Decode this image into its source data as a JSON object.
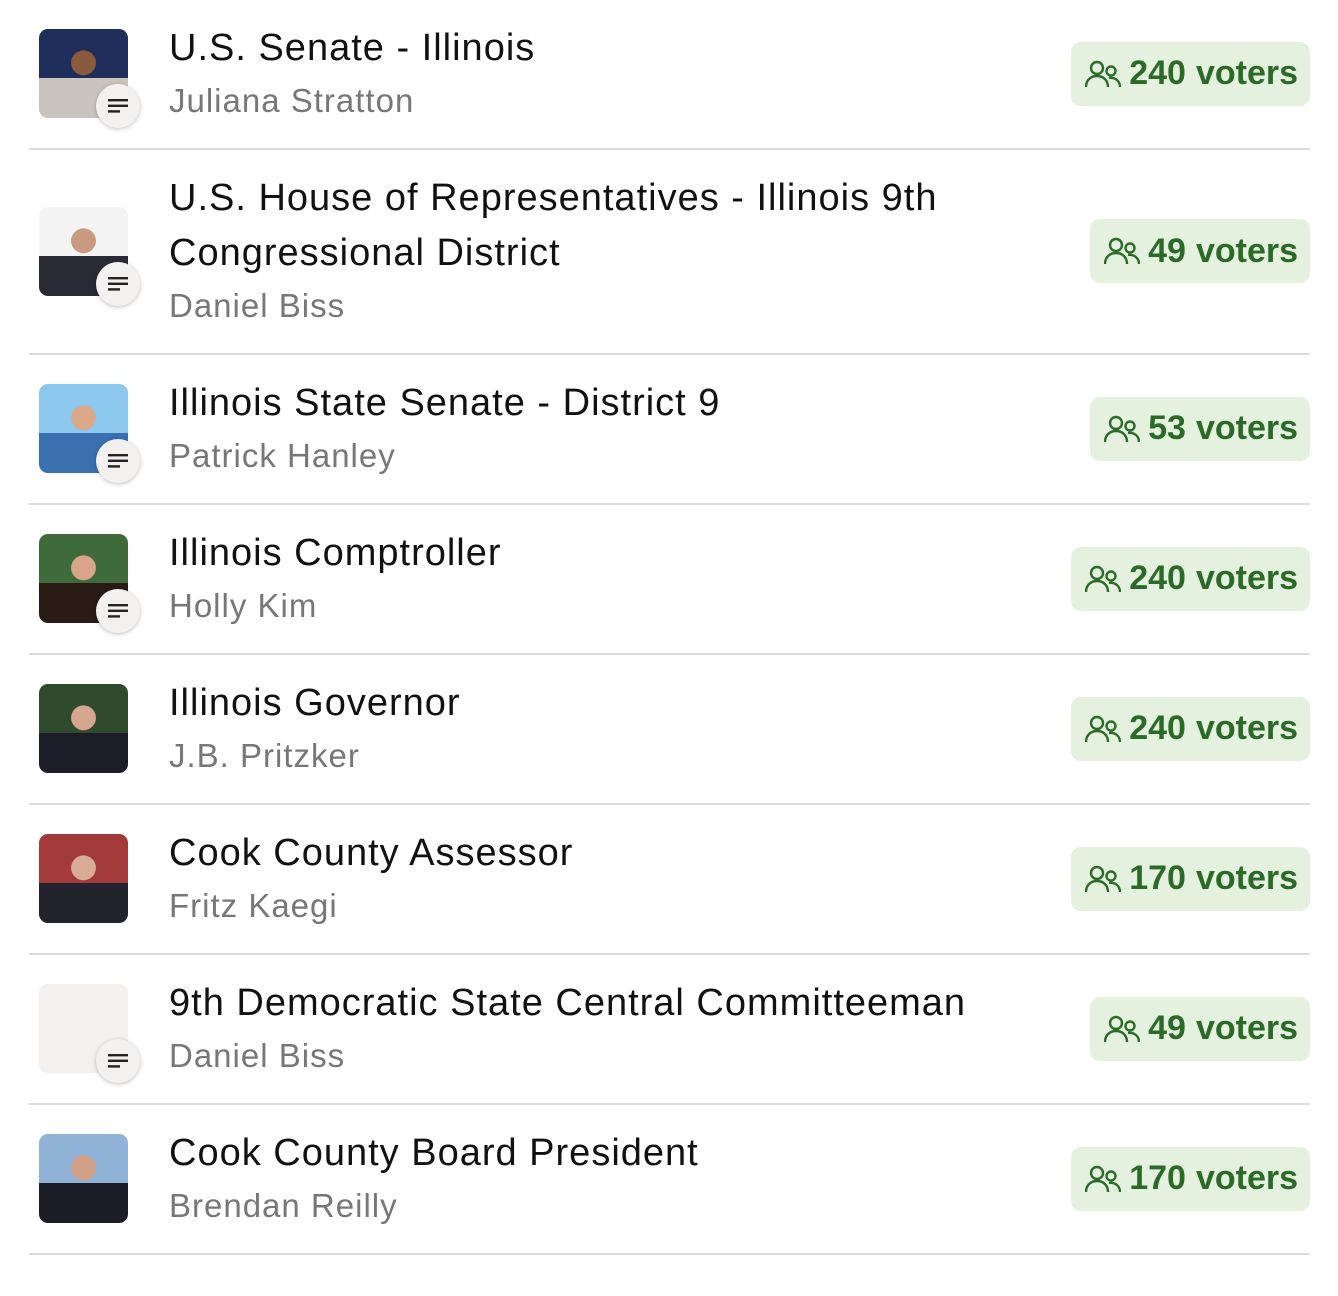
{
  "colors": {
    "badge_bg": "#e4f1df",
    "badge_text": "#2b6a27",
    "separator": "#dcdcdc"
  },
  "races": [
    {
      "title": "U.S. Senate - Illinois",
      "candidate": "Juliana Stratton",
      "count": "240",
      "unit": "voters",
      "has_note": true,
      "photo": [
        "#1e2d5a",
        "#c9c4bd",
        "#8a5a3c"
      ]
    },
    {
      "title": "U.S. House of Representatives - Illinois 9th Congressional District",
      "candidate": "Daniel Biss",
      "count": "49",
      "unit": "voters",
      "has_note": true,
      "photo": [
        "#f4f4f4",
        "#2a2a35",
        "#c99a80"
      ]
    },
    {
      "title": "Illinois State Senate - District 9",
      "candidate": "Patrick Hanley",
      "count": "53",
      "unit": "voters",
      "has_note": true,
      "photo": [
        "#8cc7ee",
        "#3a6fb0",
        "#d9a98a"
      ]
    },
    {
      "title": "Illinois Comptroller",
      "candidate": "Holly Kim",
      "count": "240",
      "unit": "voters",
      "has_note": true,
      "photo": [
        "#3f6b3a",
        "#2a1a14",
        "#d6a58a"
      ]
    },
    {
      "title": "Illinois Governor",
      "candidate": "J.B. Pritzker",
      "count": "240",
      "unit": "voters",
      "has_note": false,
      "photo": [
        "#2f4a2c",
        "#1d1d2a",
        "#d7a68f"
      ]
    },
    {
      "title": "Cook County Assessor",
      "candidate": "Fritz Kaegi",
      "count": "170",
      "unit": "voters",
      "has_note": false,
      "photo": [
        "#a23a3a",
        "#23232e",
        "#d9ad95"
      ]
    },
    {
      "title": "9th Democratic State Central Committeeman",
      "candidate": "Daniel Biss",
      "count": "49",
      "unit": "voters",
      "has_note": true,
      "photo": [
        "#f3f1f0",
        "#f3f1f0",
        "#f3f1f0"
      ]
    },
    {
      "title": "Cook County Board President",
      "candidate": "Brendan Reilly",
      "count": "170",
      "unit": "voters",
      "has_note": false,
      "photo": [
        "#8fb2d6",
        "#1c1c26",
        "#d2a085"
      ]
    }
  ]
}
